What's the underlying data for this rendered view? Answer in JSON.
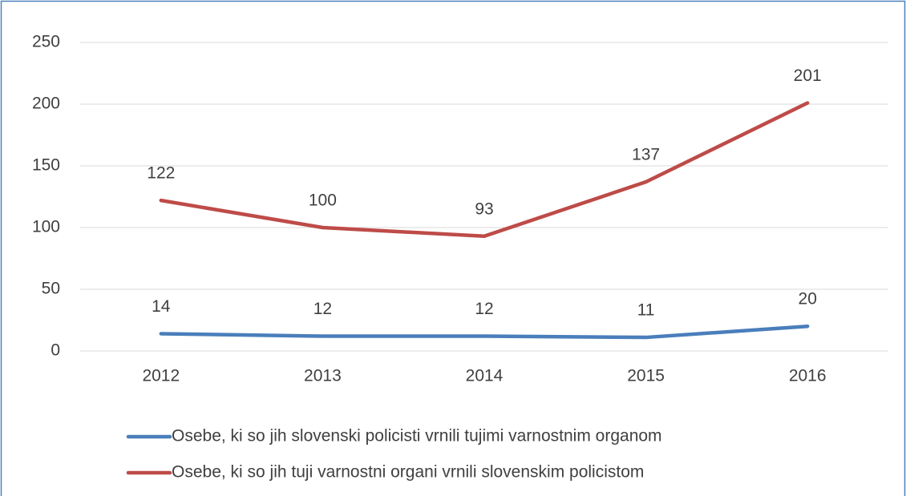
{
  "chart_data": {
    "type": "line",
    "categories": [
      "2012",
      "2013",
      "2014",
      "2015",
      "2016"
    ],
    "series": [
      {
        "name": "Osebe, ki so jih slovenski policisti vrnili tujimi varnostnim organom",
        "color": "#4a7ebb",
        "values": [
          14,
          12,
          12,
          11,
          20
        ]
      },
      {
        "name": "Osebe, ki so jih tuji varnostni organi vrnili slovenskim policistom",
        "color": "#be4b48",
        "values": [
          122,
          100,
          93,
          137,
          201
        ]
      }
    ],
    "ylim": [
      0,
      250
    ],
    "yticks": [
      0,
      50,
      100,
      150,
      200,
      250
    ],
    "grid": true,
    "legend": "bottom"
  }
}
